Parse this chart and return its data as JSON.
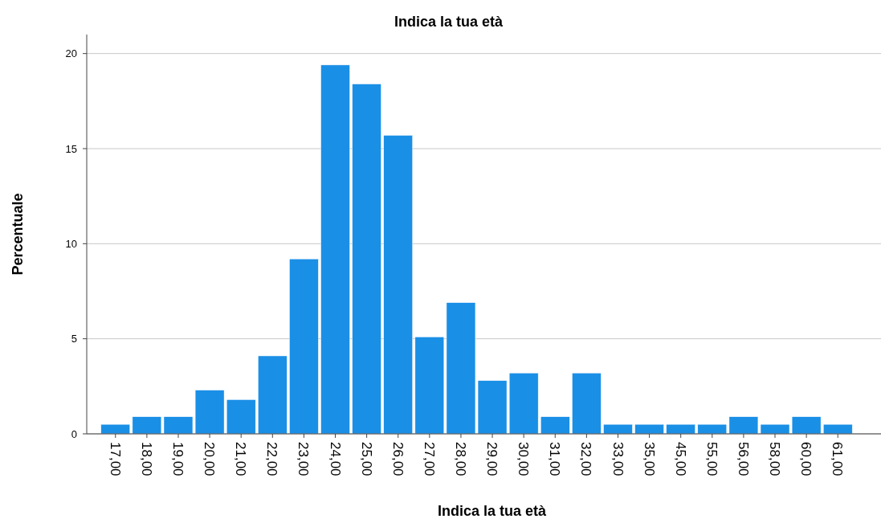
{
  "chart_data": {
    "type": "bar",
    "title": "Indica la tua età",
    "xlabel": "Indica la tua età",
    "ylabel": "Percentuale",
    "categories": [
      "17,00",
      "18,00",
      "19,00",
      "20,00",
      "21,00",
      "22,00",
      "23,00",
      "24,00",
      "25,00",
      "26,00",
      "27,00",
      "28,00",
      "29,00",
      "30,00",
      "31,00",
      "32,00",
      "33,00",
      "35,00",
      "45,00",
      "55,00",
      "56,00",
      "58,00",
      "60,00",
      "61,00"
    ],
    "values": [
      0.5,
      0.9,
      0.9,
      2.3,
      1.8,
      4.1,
      9.2,
      19.4,
      18.4,
      15.7,
      5.1,
      6.9,
      2.8,
      3.2,
      0.9,
      3.2,
      0.5,
      0.5,
      0.5,
      0.5,
      0.9,
      0.5,
      0.9,
      0.5
    ],
    "color": "#1a8fe6",
    "ylim": [
      0,
      21
    ],
    "yticks": [
      0,
      5,
      10,
      15,
      20
    ],
    "grid": "y"
  }
}
